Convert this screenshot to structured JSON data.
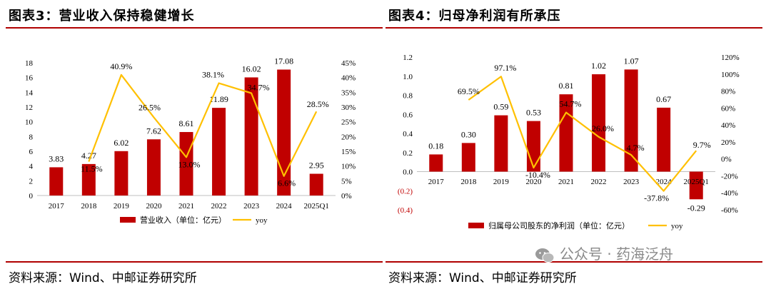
{
  "charts": [
    {
      "panel_title": "图表3：营业收入保持稳健增长",
      "source": "资料来源：Wind、中邮证券研究所"
    },
    {
      "panel_title": "图表4：归母净利润有所承压",
      "source": "资料来源：Wind、中邮证券研究所"
    }
  ],
  "watermark": "公众号 · 药海泛舟",
  "colors": {
    "bar": "#c00000",
    "line": "#ffc000",
    "rule": "#b00000",
    "negative_tick": "#c00000"
  },
  "chart_data": [
    {
      "type": "bar",
      "categories": [
        "2017",
        "2018",
        "2019",
        "2020",
        "2021",
        "2022",
        "2023",
        "2024",
        "2025Q1"
      ],
      "series": [
        {
          "name": "营业收入（单位：亿元）",
          "type": "bar",
          "axis": "left",
          "values": [
            3.83,
            4.27,
            6.02,
            7.62,
            8.61,
            11.89,
            16.02,
            17.08,
            2.95
          ],
          "labels": [
            "3.83",
            "4.27",
            "6.02",
            "7.62",
            "8.61",
            "11.89",
            "16.02",
            "17.08",
            "2.95"
          ]
        },
        {
          "name": "yoy",
          "type": "line",
          "axis": "right",
          "values": [
            null,
            11.5,
            40.9,
            26.5,
            13.0,
            38.1,
            34.7,
            6.6,
            28.5
          ],
          "labels": [
            "",
            "11.5%",
            "40.9%",
            "26.5%",
            "13.0%",
            "38.1%",
            "34.7%",
            "6.6%",
            "28.5%"
          ]
        }
      ],
      "ylim_left": [
        0,
        18
      ],
      "yticks_left": [
        "0",
        "2",
        "4",
        "6",
        "8",
        "10",
        "12",
        "14",
        "16",
        "18"
      ],
      "ylim_right": [
        0,
        45
      ],
      "yticks_right": [
        "0%",
        "5%",
        "10%",
        "15%",
        "20%",
        "25%",
        "30%",
        "35%",
        "40%",
        "45%"
      ],
      "legend_position": "bottom"
    },
    {
      "type": "bar",
      "categories": [
        "2017",
        "2018",
        "2019",
        "2020",
        "2021",
        "2022",
        "2023",
        "2024",
        "2025Q1"
      ],
      "series": [
        {
          "name": "归属母公司股东的净利润（单位：亿元）",
          "type": "bar",
          "axis": "left",
          "values": [
            0.18,
            0.3,
            0.59,
            0.53,
            0.81,
            1.02,
            1.07,
            0.67,
            -0.29
          ],
          "labels": [
            "0.18",
            "0.30",
            "0.59",
            "0.53",
            "0.81",
            "1.02",
            "1.07",
            "0.67",
            "-0.29"
          ]
        },
        {
          "name": "yoy",
          "type": "line",
          "axis": "right",
          "values": [
            null,
            69.5,
            97.1,
            -10.4,
            54.7,
            26.0,
            4.7,
            -37.8,
            9.7
          ],
          "labels": [
            "",
            "69.5%",
            "97.1%",
            "-10.4%",
            "54.7%",
            "26.0%",
            "4.7%",
            "-37.8%",
            "9.7%"
          ]
        }
      ],
      "ylim_left": [
        -0.4,
        1.2
      ],
      "yticks_left": [
        "(0.4)",
        "(0.2)",
        "0.0",
        "0.2",
        "0.4",
        "0.6",
        "0.8",
        "1.0",
        "1.2"
      ],
      "ylim_right": [
        -60,
        120
      ],
      "yticks_right": [
        "-60%",
        "-40%",
        "-20%",
        "0%",
        "20%",
        "40%",
        "60%",
        "80%",
        "100%",
        "120%"
      ],
      "legend_position": "bottom"
    }
  ]
}
